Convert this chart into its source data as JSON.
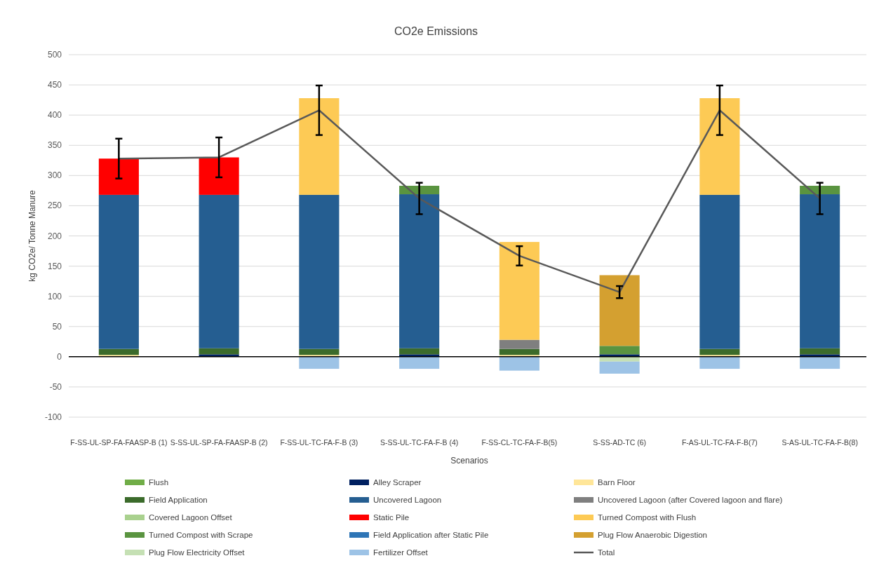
{
  "chart_data": {
    "type": "bar",
    "stacked": true,
    "title": "CO2e Emissions",
    "xlabel": "Scenarios",
    "ylabel": "kg CO2e/ Tonne Manure",
    "categories": [
      "F-SS-UL-SP-FA-FAASP-B (1)",
      "S-SS-UL-SP-FA-FAASP-B (2)",
      "F-SS-UL-TC-FA-F-B (3)",
      "S-SS-UL-TC-FA-F-B (4)",
      "F-SS-CL-TC-FA-F-B(5)",
      "S-SS-AD-TC (6)",
      "F-AS-UL-TC-FA-F-B(7)",
      "S-AS-UL-TC-FA-F-B(8)"
    ],
    "ylim": [
      -100,
      500
    ],
    "yticks": [
      -100,
      -50,
      0,
      50,
      100,
      150,
      200,
      250,
      300,
      350,
      400,
      450,
      500
    ],
    "grid": "y",
    "legend": "bottom",
    "series": [
      {
        "name": "Flush",
        "color": "#70ad47",
        "values": [
          null,
          null,
          null,
          null,
          null,
          null,
          null,
          null
        ]
      },
      {
        "name": "Alley Scraper",
        "color": "#002060",
        "values": [
          null,
          4,
          null,
          4,
          null,
          4,
          null,
          4
        ]
      },
      {
        "name": "Barn Floor",
        "color": "#ffe699",
        "values": [
          3,
          null,
          3,
          null,
          3,
          null,
          3,
          null
        ]
      },
      {
        "name": "Field Application",
        "color": "#3b6b2b",
        "values": [
          10,
          10,
          10,
          10,
          10,
          null,
          10,
          10
        ]
      },
      {
        "name": "Uncovered Lagoon",
        "color": "#255e91",
        "values": [
          255,
          254,
          255,
          255,
          null,
          null,
          255,
          255
        ]
      },
      {
        "name": "Uncovered Lagoon (after Covered lagoon and flare)",
        "color": "#7f7f7f",
        "values": [
          null,
          null,
          null,
          null,
          15,
          null,
          null,
          null
        ]
      },
      {
        "name": "Covered Lagoon Offset",
        "color": "#a9d18e",
        "values": [
          null,
          null,
          null,
          null,
          null,
          null,
          null,
          null
        ]
      },
      {
        "name": "Static Pile",
        "color": "#ff0000",
        "values": [
          60,
          62,
          null,
          null,
          null,
          null,
          null,
          null
        ]
      },
      {
        "name": "Turned Compost with Flush",
        "color": "#fdca55",
        "values": [
          null,
          null,
          160,
          null,
          162,
          null,
          160,
          null
        ]
      },
      {
        "name": "Turned Compost with Scrape",
        "color": "#5a9440",
        "values": [
          null,
          null,
          null,
          14,
          null,
          14,
          null,
          14
        ]
      },
      {
        "name": "Field Application after Static Pile",
        "color": "#2e75b6",
        "values": [
          null,
          null,
          null,
          null,
          null,
          null,
          null,
          null
        ]
      },
      {
        "name": "Plug Flow Anaerobic Digestion",
        "color": "#d4a030",
        "values": [
          null,
          null,
          null,
          null,
          null,
          117,
          null,
          null
        ]
      },
      {
        "name": "Plug Flow Electricity Offset",
        "color": "#c5e0b4",
        "values": [
          null,
          null,
          null,
          null,
          null,
          -8,
          null,
          null
        ]
      },
      {
        "name": "Fertilizer Offset",
        "color": "#9dc3e6",
        "values": [
          null,
          null,
          -20,
          -20,
          -23,
          -20,
          -20,
          -20
        ]
      },
      {
        "name": "Total",
        "type": "line",
        "color": "#595959",
        "values": [
          328,
          330,
          408,
          262,
          167,
          107,
          408,
          262
        ],
        "errors": [
          33,
          33,
          41,
          26,
          16,
          10,
          41,
          26
        ]
      }
    ]
  }
}
